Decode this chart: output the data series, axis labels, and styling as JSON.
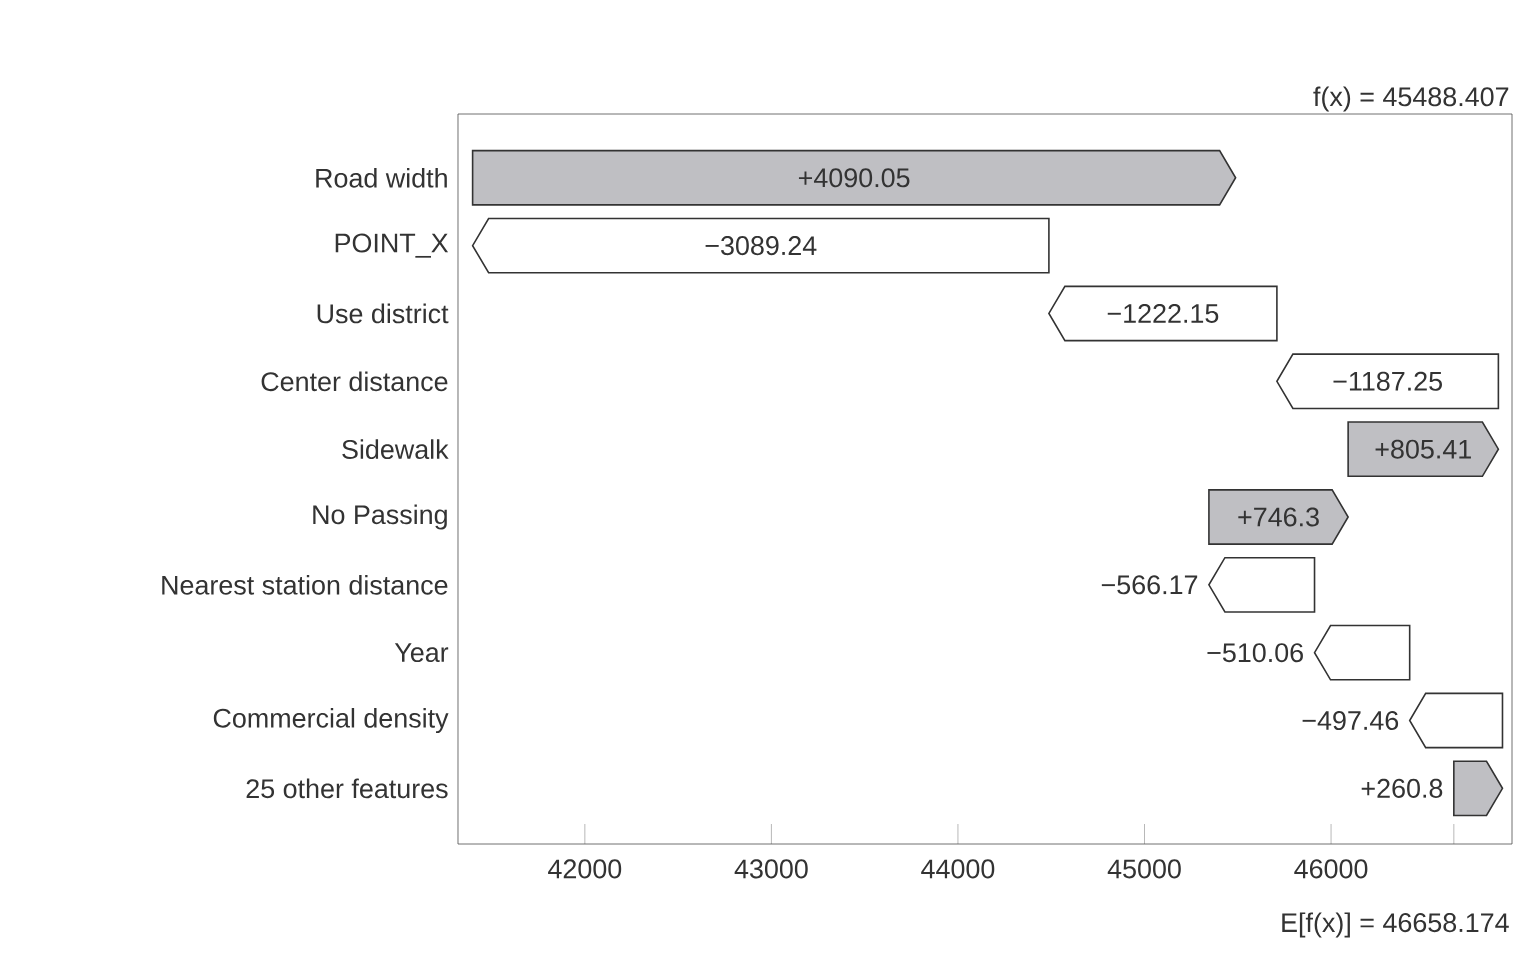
{
  "chart_data": {
    "type": "bar",
    "orientation": "horizontal",
    "categories": [
      "Road width",
      "POINT_X",
      "Use district",
      "Center distance",
      "Sidewalk",
      "No Passing",
      "Nearest station distance",
      "Year",
      "Commercial density",
      "25 other features"
    ],
    "values": [
      4090.05,
      -3089.24,
      -1222.15,
      -1187.25,
      805.41,
      746.3,
      -566.17,
      -510.06,
      -497.46,
      260.8
    ],
    "base": [
      41398.354,
      44487.594,
      45709.744,
      46896.994,
      46091.584,
      45345.284,
      45911.454,
      46421.514,
      46918.974,
      46658.174
    ],
    "colors": [
      "#bfbfc3",
      "#ffffff",
      "#ffffff",
      "#ffffff",
      "#bfbfc3",
      "#bfbfc3",
      "#ffffff",
      "#ffffff",
      "#ffffff",
      "#bfbfc3"
    ],
    "value_labels": [
      "+4090.05",
      "−3089.24",
      "−1222.15",
      "−1187.25",
      "+805.41",
      "+746.3",
      "−566.17",
      "−510.06",
      "−497.46",
      "+260.8"
    ],
    "xlim": [
      41320,
      46970
    ],
    "xticks": [
      42000,
      43000,
      44000,
      45000,
      46000,
      {
        "value": 46658.174,
        "label": null
      }
    ],
    "annotations": [
      "f(x) = 45488.407",
      "E[f(x)] = 46658.174"
    ]
  }
}
